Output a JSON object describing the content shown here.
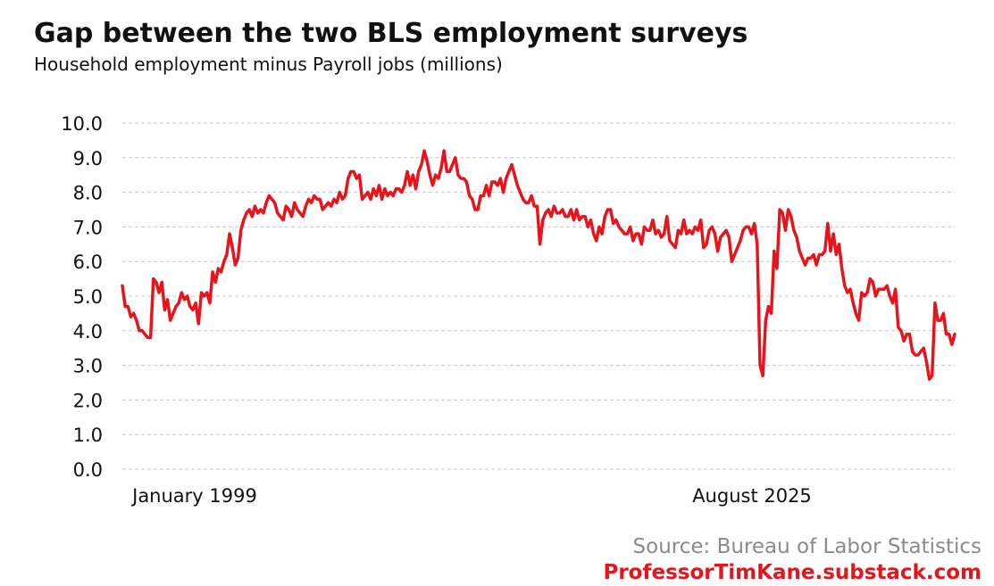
{
  "chart_data": {
    "type": "line",
    "title": "Gap between the two BLS employment surveys",
    "subtitle": "Household employment minus Payroll jobs (millions)",
    "xlabel": "",
    "ylabel": "",
    "ylim": [
      0,
      10
    ],
    "yticks": [
      "0.0",
      "1.0",
      "2.0",
      "3.0",
      "4.0",
      "5.0",
      "6.0",
      "7.0",
      "8.0",
      "9.0",
      "10.0"
    ],
    "x_labels": [
      "January 1999",
      "August 2025"
    ],
    "grid": "horizontal dashed",
    "series": [
      {
        "name": "Household minus Payroll",
        "color": "#e8141c",
        "values": [
          5.3,
          4.7,
          4.7,
          4.4,
          4.5,
          4.3,
          4.0,
          4.0,
          3.9,
          3.8,
          3.8,
          5.5,
          5.4,
          5.1,
          5.4,
          4.6,
          4.9,
          4.3,
          4.5,
          4.7,
          4.8,
          5.1,
          4.9,
          5.0,
          4.7,
          4.6,
          4.8,
          4.2,
          5.1,
          5.0,
          5.1,
          4.8,
          5.7,
          5.4,
          5.8,
          5.7,
          6.0,
          6.2,
          6.8,
          6.4,
          5.9,
          6.1,
          6.9,
          7.2,
          7.4,
          7.5,
          7.3,
          7.6,
          7.4,
          7.5,
          7.4,
          7.7,
          7.9,
          7.8,
          7.7,
          7.4,
          7.3,
          7.2,
          7.6,
          7.5,
          7.3,
          7.7,
          7.5,
          7.4,
          7.3,
          7.6,
          7.8,
          7.7,
          7.9,
          7.8,
          7.8,
          7.5,
          7.6,
          7.7,
          7.6,
          7.8,
          7.7,
          8.0,
          7.8,
          7.9,
          8.4,
          8.6,
          8.6,
          8.4,
          8.5,
          7.8,
          7.9,
          8.0,
          7.8,
          8.1,
          7.9,
          8.2,
          7.8,
          8.1,
          7.9,
          8.0,
          7.9,
          8.1,
          8.1,
          8.0,
          8.2,
          8.6,
          8.2,
          8.5,
          8.1,
          8.6,
          8.8,
          9.2,
          8.9,
          8.5,
          8.2,
          8.5,
          8.4,
          8.7,
          9.2,
          8.6,
          8.6,
          8.8,
          9.0,
          8.5,
          8.4,
          8.4,
          8.3,
          7.9,
          7.8,
          7.5,
          7.5,
          7.9,
          7.9,
          8.2,
          7.9,
          8.3,
          8.3,
          8.2,
          8.4,
          8.0,
          8.4,
          8.6,
          8.8,
          8.5,
          8.2,
          8.0,
          7.8,
          7.7,
          7.7,
          7.9,
          7.6,
          7.6,
          6.5,
          7.2,
          7.4,
          7.5,
          7.3,
          7.6,
          7.4,
          7.4,
          7.5,
          7.3,
          7.3,
          7.5,
          7.2,
          7.5,
          7.2,
          7.3,
          7.3,
          7.0,
          7.2,
          6.8,
          6.6,
          7.0,
          6.8,
          7.3,
          7.5,
          7.5,
          7.1,
          7.2,
          7.0,
          6.9,
          6.8,
          6.8,
          7.0,
          6.6,
          6.8,
          6.8,
          6.5,
          7.0,
          6.9,
          6.9,
          7.2,
          6.8,
          6.9,
          6.7,
          6.8,
          7.3,
          6.6,
          6.5,
          6.4,
          6.9,
          6.8,
          7.2,
          6.8,
          6.9,
          6.8,
          7.0,
          6.9,
          7.2,
          6.4,
          6.5,
          6.9,
          7.0,
          6.8,
          6.3,
          6.7,
          6.8,
          6.9,
          6.7,
          6.0,
          6.2,
          6.4,
          6.6,
          6.9,
          7.0,
          7.0,
          6.8,
          7.1,
          6.5,
          3.0,
          2.7,
          4.3,
          4.7,
          4.5,
          6.3,
          5.8,
          7.5,
          7.4,
          6.9,
          7.5,
          7.3,
          6.9,
          6.7,
          6.3,
          6.1,
          5.9,
          6.1,
          6.1,
          6.2,
          5.9,
          6.2,
          6.2,
          6.3,
          7.1,
          6.3,
          6.8,
          6.2,
          6.5,
          5.8,
          5.3,
          5.1,
          5.2,
          4.8,
          4.5,
          4.3,
          5.1,
          5.0,
          5.1,
          5.5,
          5.4,
          5.0,
          5.2,
          5.2,
          5.2,
          5.3,
          5.0,
          4.8,
          5.2,
          4.1,
          4.0,
          3.7,
          3.9,
          3.9,
          3.4,
          3.3,
          3.3,
          3.4,
          3.5,
          3.1,
          2.6,
          2.7,
          4.8,
          4.3,
          4.3,
          4.5,
          3.9,
          3.9,
          3.6,
          3.9
        ]
      }
    ],
    "source": "Source:  Bureau of Labor Statistics",
    "credit": "ProfessorTimKane.substack.com"
  }
}
